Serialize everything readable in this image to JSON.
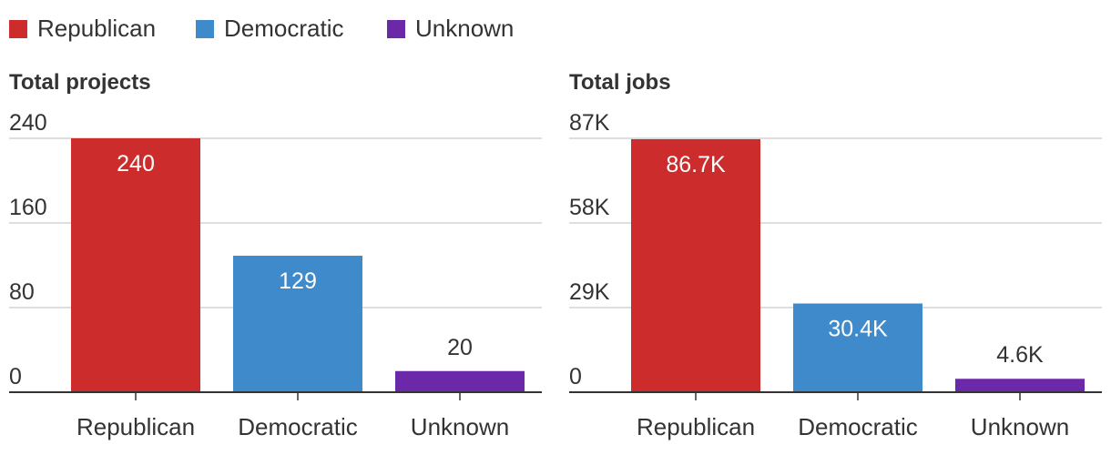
{
  "legend": [
    {
      "label": "Republican",
      "color": "#cc2c2b"
    },
    {
      "label": "Democratic",
      "color": "#3e8acb"
    },
    {
      "label": "Unknown",
      "color": "#6b28a8"
    }
  ],
  "chart_data": [
    {
      "type": "bar",
      "title": "Total projects",
      "categories": [
        "Republican",
        "Democratic",
        "Unknown"
      ],
      "values": [
        240,
        129,
        20
      ],
      "value_labels": [
        "240",
        "129",
        "20"
      ],
      "colors": [
        "#cc2c2b",
        "#3e8acb",
        "#6b28a8"
      ],
      "ylim": [
        0,
        240
      ],
      "yticks": [
        0,
        80,
        160,
        240
      ],
      "ytick_labels": [
        "0",
        "80",
        "160",
        "240"
      ],
      "grid": true,
      "legend_placement": "top"
    },
    {
      "type": "bar",
      "title": "Total jobs",
      "categories": [
        "Republican",
        "Democratic",
        "Unknown"
      ],
      "values": [
        86700,
        30400,
        4600
      ],
      "value_labels": [
        "86.7K",
        "30.4K",
        "4.6K"
      ],
      "colors": [
        "#cc2c2b",
        "#3e8acb",
        "#6b28a8"
      ],
      "ylim": [
        0,
        87000
      ],
      "yticks": [
        0,
        29000,
        58000,
        87000
      ],
      "ytick_labels": [
        "0",
        "29K",
        "58K",
        "87K"
      ],
      "grid": true,
      "legend_placement": "top"
    }
  ]
}
